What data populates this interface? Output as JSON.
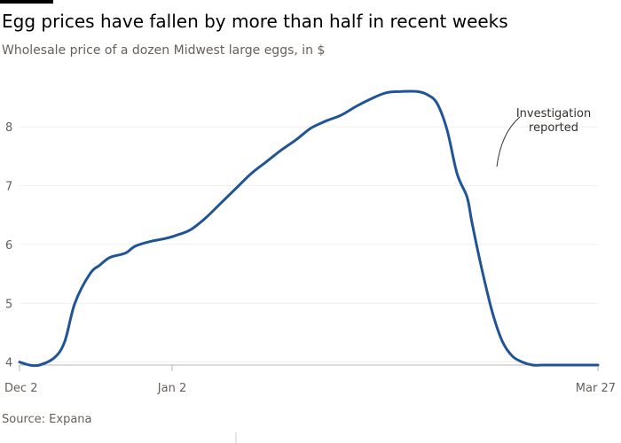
{
  "header": {
    "title": "Egg prices have fallen by more than half in recent weeks",
    "subtitle": "Wholesale price of a dozen Midwest large eggs, in $"
  },
  "source": "Source: Expana",
  "colors": {
    "line": "#1f5496",
    "grid": "#f0efee",
    "axis": "#b8b5b2",
    "text": "#66605c"
  },
  "chart_data": {
    "type": "line",
    "title": "Egg prices have fallen by more than half in recent weeks",
    "subtitle": "Wholesale price of a dozen Midwest large eggs, in $",
    "xlabel": "",
    "ylabel": "",
    "x_ticks": [
      "Dec 2",
      "Jan 2",
      "Mar 27"
    ],
    "y_ticks": [
      4,
      5,
      6,
      7,
      8
    ],
    "xlim": [
      "2024-12-02",
      "2025-03-27"
    ],
    "ylim": [
      3.95,
      8.95
    ],
    "grid": true,
    "annotations": [
      {
        "text_lines": [
          "Investigation",
          "reported"
        ],
        "x": "2025-03-07",
        "y": 7.2
      }
    ],
    "series": [
      {
        "x": [
          "2024-12-02",
          "2024-12-04",
          "2024-12-06",
          "2024-12-09",
          "2024-12-11",
          "2024-12-13",
          "2024-12-16",
          "2024-12-18",
          "2024-12-20",
          "2024-12-23",
          "2024-12-25",
          "2024-12-28",
          "2024-12-31",
          "2025-01-02",
          "2025-01-05",
          "2025-01-08",
          "2025-01-11",
          "2025-01-14",
          "2025-01-17",
          "2025-01-20",
          "2025-01-23",
          "2025-01-26",
          "2025-01-29",
          "2025-02-01",
          "2025-02-04",
          "2025-02-07",
          "2025-02-10",
          "2025-02-13",
          "2025-02-16",
          "2025-02-19",
          "2025-02-21",
          "2025-02-23",
          "2025-02-25",
          "2025-02-27",
          "2025-03-01",
          "2025-03-02",
          "2025-03-04",
          "2025-03-06",
          "2025-03-08",
          "2025-03-10",
          "2025-03-12",
          "2025-03-14",
          "2025-03-16",
          "2025-03-18",
          "2025-03-20",
          "2025-03-22",
          "2025-03-24",
          "2025-03-27"
        ],
        "values": [
          4.0,
          3.95,
          3.95,
          4.08,
          4.35,
          5.0,
          5.5,
          5.65,
          5.78,
          5.85,
          5.97,
          6.05,
          6.1,
          6.15,
          6.25,
          6.45,
          6.7,
          6.95,
          7.2,
          7.4,
          7.6,
          7.78,
          7.98,
          8.1,
          8.2,
          8.35,
          8.48,
          8.58,
          8.6,
          8.6,
          8.55,
          8.4,
          7.95,
          7.2,
          6.8,
          6.35,
          5.55,
          4.85,
          4.35,
          4.1,
          4.0,
          3.95,
          3.95,
          3.95,
          3.95,
          3.95,
          3.95,
          3.95
        ]
      }
    ]
  }
}
